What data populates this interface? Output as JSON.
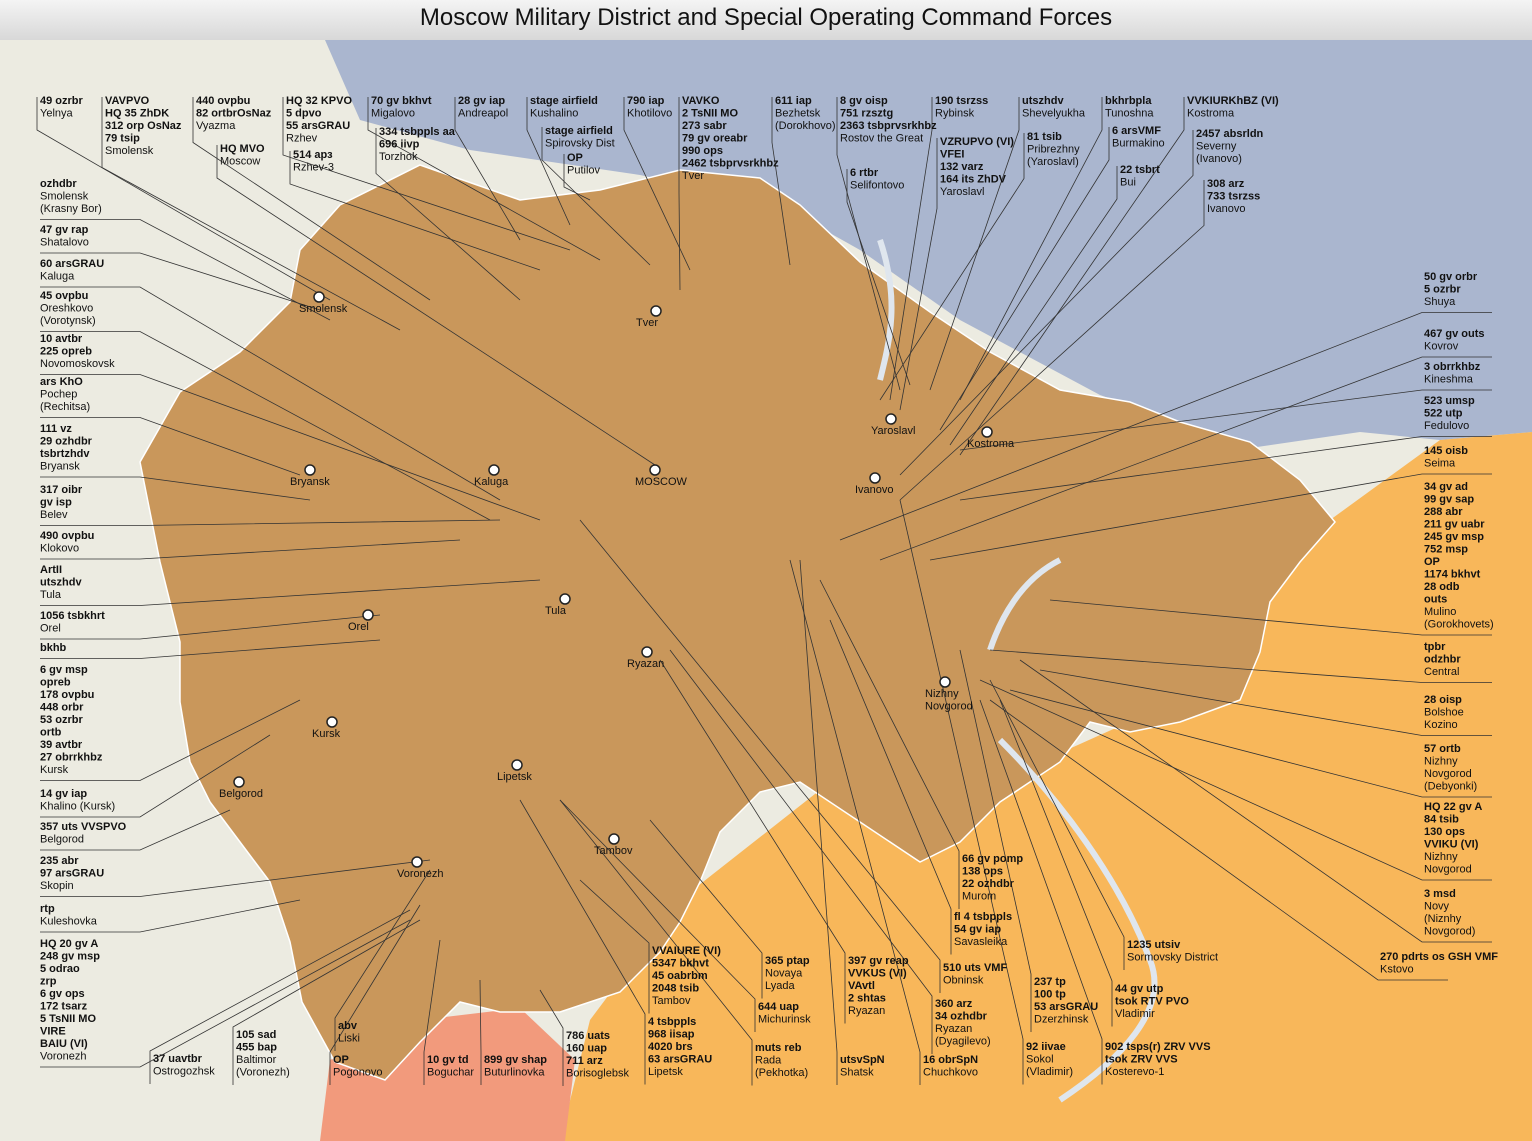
{
  "title": "Moscow Military District and Special Operating Command Forces",
  "callouts": [
    {
      "units": [
        "49 ozrbr"
      ],
      "place": [
        "Yelnya"
      ]
    },
    {
      "units": [
        "VAVPVO",
        "HQ 35 ZhDK",
        "312 orp OsNaz",
        "79 tsip"
      ],
      "place": [
        "Smolensk"
      ]
    },
    {
      "units": [
        "440 ovpbu",
        "82 ortbrOsNaz"
      ],
      "place": [
        "Vyazma"
      ]
    },
    {
      "units": [
        "HQ MVO"
      ],
      "place": [
        "Moscow"
      ]
    },
    {
      "units": [
        "HQ 32 KPVO",
        "5 dpvo",
        "55 arsGRAU"
      ],
      "place": [
        "Rzhev"
      ]
    },
    {
      "units": [
        "514 арз"
      ],
      "place": [
        "Rzhev-3"
      ]
    },
    {
      "units": [
        "70 gv bkhvt"
      ],
      "place": [
        "Migalovo"
      ]
    },
    {
      "units": [
        "334 tsbppls aa",
        "696 iivp"
      ],
      "place": [
        "Torzhok"
      ]
    },
    {
      "units": [
        "28 gv iap"
      ],
      "place": [
        "Andreapol"
      ]
    },
    {
      "units": [
        "stage airfield"
      ],
      "place": [
        "Kushalino"
      ]
    },
    {
      "units": [
        "stage airfield"
      ],
      "place": [
        "Spirovsky Dist"
      ]
    },
    {
      "units": [
        "OP"
      ],
      "place": [
        "Putilov"
      ]
    },
    {
      "units": [
        "790 iap"
      ],
      "place": [
        "Khotilovo"
      ]
    },
    {
      "units": [
        "VAVKO",
        "2 TsNII MO",
        "273 sabr",
        "79 gv oreabr",
        "990 ops",
        "2462 tsbprvsrkhbz"
      ],
      "place": [
        "Tver"
      ]
    },
    {
      "units": [
        "611 iap"
      ],
      "place": [
        "Bezhetsk",
        "(Dorokhovo)"
      ]
    },
    {
      "units": [
        "8 gv oisp",
        "751 rzsztg",
        "2363 tsbprvsrkhbz"
      ],
      "place": [
        "Rostov the Great"
      ]
    },
    {
      "units": [
        "6 rtbr"
      ],
      "place": [
        "Selifontovo"
      ]
    },
    {
      "units": [
        "190 tsrzss"
      ],
      "place": [
        "Rybinsk"
      ]
    },
    {
      "units": [
        "VZRUPVO (VI)",
        "VFEI",
        "132 varz",
        "164 its ZhDV"
      ],
      "place": [
        "Yaroslavl"
      ]
    },
    {
      "units": [
        "utszhdv"
      ],
      "place": [
        "Shevelyukha"
      ]
    },
    {
      "units": [
        "81 tsib"
      ],
      "place": [
        "Pribrezhny",
        "(Yaroslavl)"
      ]
    },
    {
      "units": [
        "bkhrbpla"
      ],
      "place": [
        "Tunoshna"
      ]
    },
    {
      "units": [
        "6 arsVMF"
      ],
      "place": [
        "Burmakino"
      ]
    },
    {
      "units": [
        "22 tsbrt"
      ],
      "place": [
        "Bui"
      ]
    },
    {
      "units": [
        "VVKIURKhBZ (VI)"
      ],
      "place": [
        "Kostroma"
      ]
    },
    {
      "units": [
        "2457 absrldn"
      ],
      "place": [
        "Severny",
        "(Ivanovo)"
      ]
    },
    {
      "units": [
        "308 arz",
        "733 tsrzss"
      ],
      "place": [
        "Ivanovo"
      ]
    },
    {
      "units": [
        "ozhdbr"
      ],
      "place": [
        "Smolensk",
        "(Krasny Bor)"
      ]
    },
    {
      "units": [
        "47 gv rap"
      ],
      "place": [
        "Shatalovo"
      ]
    },
    {
      "units": [
        "60 arsGRAU"
      ],
      "place": [
        "Kaluga"
      ]
    },
    {
      "units": [
        "45 ovpbu"
      ],
      "place": [
        "Oreshkovo",
        "(Vorotynsk)"
      ]
    },
    {
      "units": [
        "10 avtbr",
        "225 opreb"
      ],
      "place": [
        "Novomoskovsk"
      ]
    },
    {
      "units": [
        "ars KhO"
      ],
      "place": [
        "Pochep",
        "(Rechitsa)"
      ]
    },
    {
      "units": [
        "111 vz",
        "29 ozhdbr",
        "tsbrtzhdv"
      ],
      "place": [
        "Bryansk"
      ]
    },
    {
      "units": [
        "317 oibr",
        "gv isp"
      ],
      "place": [
        "Belev"
      ]
    },
    {
      "units": [
        "490 ovpbu"
      ],
      "place": [
        "Klokovo"
      ]
    },
    {
      "units": [
        "ArtII",
        "utszhdv"
      ],
      "place": [
        "Tula"
      ]
    },
    {
      "units": [
        "1056 tsbkhrt"
      ],
      "place": [
        "Orel"
      ]
    },
    {
      "units": [
        "bkhb"
      ],
      "place": []
    },
    {
      "units": [
        "6 gv msp",
        "opreb",
        "178 ovpbu",
        "448 orbr",
        "53 ozrbr",
        "ortb",
        "39 avtbr",
        "27 obrrkhbz"
      ],
      "place": [
        "Kursk"
      ]
    },
    {
      "units": [
        "14 gv iap"
      ],
      "place": [
        "Khalino (Kursk)"
      ]
    },
    {
      "units": [
        "357 uts VVSPVO"
      ],
      "place": [
        "Belgorod"
      ]
    },
    {
      "units": [
        "235 abr",
        "97 arsGRAU"
      ],
      "place": [
        "Skopin"
      ]
    },
    {
      "units": [
        "rtp"
      ],
      "place": [
        "Kuleshovka"
      ]
    },
    {
      "units": [
        "HQ 20 gv A",
        "248 gv msp",
        "5 odrao",
        "zrp",
        "6 gv ops",
        "172 tsarz",
        "5 TsNII MO",
        "VIRE",
        "BAIU  (VI)"
      ],
      "place": [
        "Voronezh"
      ]
    },
    {
      "units": [
        "37 uavtbr"
      ],
      "place": [
        "Ostrogozhsk"
      ]
    },
    {
      "units": [
        "105 sad",
        "455 bap"
      ],
      "place": [
        "Baltimor",
        "(Voronezh)"
      ]
    },
    {
      "units": [
        "abv"
      ],
      "place": [
        "Liski"
      ]
    },
    {
      "units": [
        "OP"
      ],
      "place": [
        "Pogonovo"
      ]
    },
    {
      "units": [
        "10 gv td"
      ],
      "place": [
        "Boguchar"
      ]
    },
    {
      "units": [
        "899 gv shap"
      ],
      "place": [
        "Buturlinovka"
      ]
    },
    {
      "units": [
        "786 uats",
        "160 uap",
        "711 arz"
      ],
      "place": [
        "Borisoglebsk"
      ]
    },
    {
      "units": [
        "VVAIURE (VI)",
        "5347 bkhvt",
        "45 oabrbm",
        "2048 tsib"
      ],
      "place": [
        "Tambov"
      ]
    },
    {
      "units": [
        "4 tsbppls",
        "968 iisap",
        "4020 brs",
        "63 arsGRAU"
      ],
      "place": [
        "Lipetsk"
      ]
    },
    {
      "units": [
        "365 ptap"
      ],
      "place": [
        "Novaya",
        "Lyada"
      ]
    },
    {
      "units": [
        "644 uap"
      ],
      "place": [
        "Michurinsk"
      ]
    },
    {
      "units": [
        "muts reb"
      ],
      "place": [
        "Rada",
        "(Pekhotka)"
      ]
    },
    {
      "units": [
        "397 gv reap",
        "VVKUS (VI)",
        "VAvtl",
        "2 shtas"
      ],
      "place": [
        "Ryazan"
      ]
    },
    {
      "units": [
        "utsvSpN"
      ],
      "place": [
        "Shatsk"
      ]
    },
    {
      "units": [
        "66 gv pomp",
        "138 ops",
        "22 ozhdbr"
      ],
      "place": [
        "Murom"
      ]
    },
    {
      "units": [
        "fl 4 tsbppls",
        "54 gv iap"
      ],
      "place": [
        "Savasleika"
      ]
    },
    {
      "units": [
        "510 uts VMF"
      ],
      "place": [
        "Obninsk"
      ]
    },
    {
      "units": [
        "360 arz",
        "34 ozhdbr"
      ],
      "place": [
        "Ryazan",
        "(Dyagilevo)"
      ]
    },
    {
      "units": [
        "16 obrSpN"
      ],
      "place": [
        "Chuchkovo"
      ]
    },
    {
      "units": [
        "237 tp",
        "100 tp",
        "53 arsGRAU"
      ],
      "place": [
        "Dzerzhinsk"
      ]
    },
    {
      "units": [
        "92 iivae"
      ],
      "place": [
        "Sokol",
        "(Vladimir)"
      ]
    },
    {
      "units": [
        "1235 utsiv"
      ],
      "place": [
        "Sormovsky District"
      ]
    },
    {
      "units": [
        "44 gv utp",
        "tsok RTV PVO"
      ],
      "place": [
        "Vladimir"
      ]
    },
    {
      "units": [
        "902 tsps(r) ZRV VVS",
        "tsok ZRV VVS"
      ],
      "place": [
        "Kosterevo-1"
      ]
    },
    {
      "units": [
        "50 gv orbr",
        "5 ozrbr"
      ],
      "place": [
        "Shuya"
      ]
    },
    {
      "units": [
        "467 gv outs"
      ],
      "place": [
        "Kovrov"
      ]
    },
    {
      "units": [
        "3 obrrkhbz"
      ],
      "place": [
        "Kineshma"
      ]
    },
    {
      "units": [
        "523 umsp",
        "522 utp"
      ],
      "place": [
        "Fedulovo"
      ]
    },
    {
      "units": [
        "145 oisb"
      ],
      "place": [
        "Seima"
      ]
    },
    {
      "units": [
        "34 gv ad",
        "99 gv sap",
        "288 abr",
        "211 gv uabr",
        "245 gv msp",
        "752 msp",
        "OP",
        "1174 bkhvt",
        "28 odb",
        "outs"
      ],
      "place": [
        "Mulino",
        "(Gorokhovets)"
      ]
    },
    {
      "units": [
        "tpbr",
        "odzhbr"
      ],
      "place": [
        "Central"
      ]
    },
    {
      "units": [
        "28 oisp"
      ],
      "place": [
        "Bolshoe",
        "Kozino"
      ]
    },
    {
      "units": [
        "57 ortb"
      ],
      "place": [
        "Nizhny",
        "Novgorod",
        "(Debyonki)"
      ]
    },
    {
      "units": [
        "HQ 22 gv A",
        "84 tsib",
        "130 ops",
        "VVIKU (VI)"
      ],
      "place": [
        "Nizhny",
        "Novgorod"
      ]
    },
    {
      "units": [
        "3 msd"
      ],
      "place": [
        "Novy",
        "(Niznhy",
        "Novgorod)"
      ]
    },
    {
      "units": [
        "270 pdrts os GSH VMF"
      ],
      "place": [
        "Kstovo"
      ]
    }
  ],
  "cities": [
    [
      "Smolensk"
    ],
    [
      "Tver"
    ],
    [
      "Yaroslavl"
    ],
    [
      "Kostroma"
    ],
    [
      "Ivanovo"
    ],
    [
      "MOSCOW"
    ],
    [
      "Kaluga"
    ],
    [
      "Bryansk"
    ],
    [
      "Tula"
    ],
    [
      "Orel"
    ],
    [
      "Ryazan"
    ],
    [
      "Nizhny",
      "Novgorod"
    ],
    [
      "Kursk"
    ],
    [
      "Belgorod"
    ],
    [
      "Lipetsk"
    ],
    [
      "Tambov"
    ],
    [
      "Voronezh"
    ]
  ]
}
